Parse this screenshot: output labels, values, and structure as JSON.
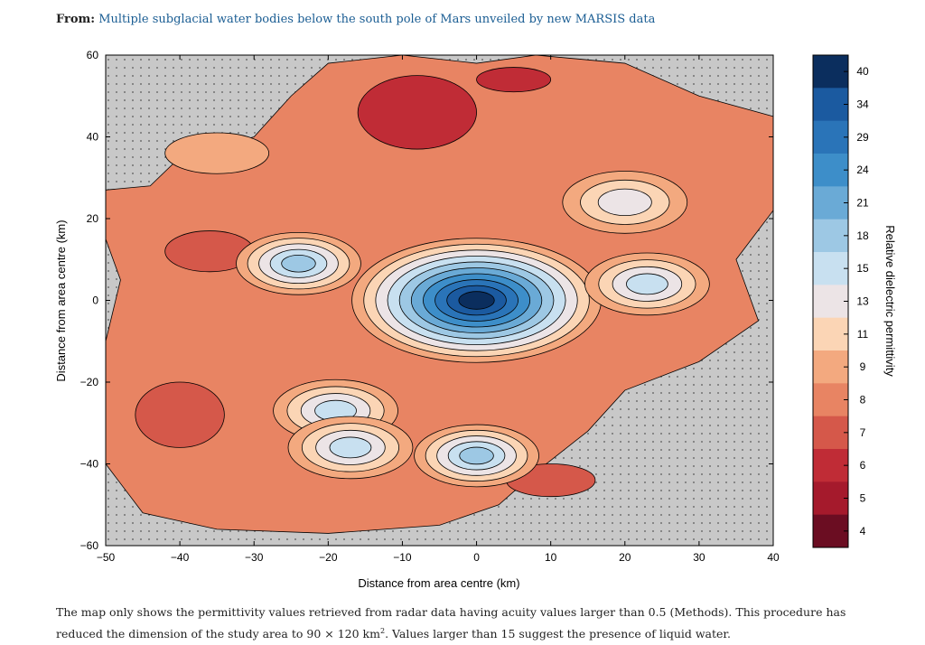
{
  "header": {
    "from_label": "From:",
    "article_link": "Multiple subglacial water bodies below the south pole of Mars unveiled by new MARSIS data"
  },
  "chart_data": {
    "type": "heatmap",
    "xlabel": "Distance from area centre (km)",
    "ylabel": "Distance from area centre (km)",
    "xlim": [
      -50,
      40
    ],
    "ylim": [
      -60,
      60
    ],
    "xticks": [
      -50,
      -40,
      -30,
      -20,
      -10,
      0,
      10,
      20,
      30,
      40
    ],
    "yticks": [
      60,
      40,
      20,
      0,
      -20,
      -40,
      -60
    ],
    "nodata_color": "#c8c8c8",
    "colorbar": {
      "label": "Relative dielectric permittivity",
      "ticks": [
        "40",
        "34",
        "29",
        "24",
        "21",
        "18",
        "15",
        "13",
        "11",
        "9",
        "8",
        "7",
        "6",
        "5",
        "4"
      ],
      "colors": [
        "#0b2e5e",
        "#1b5aa0",
        "#2a74b8",
        "#3d8ec9",
        "#6aaad6",
        "#9dc8e4",
        "#c8e0f0",
        "#ece4e6",
        "#fbd5b5",
        "#f3a97f",
        "#e88463",
        "#d5584a",
        "#c02c36",
        "#a51a2c",
        "#6b0d22"
      ]
    },
    "features": [
      {
        "x": 0,
        "y": 0,
        "peak": 40
      },
      {
        "x": -24,
        "y": 9,
        "peak": 18
      },
      {
        "x": 23,
        "y": 4,
        "peak": 15
      },
      {
        "x": -19,
        "y": -27,
        "peak": 17
      },
      {
        "x": 0,
        "y": -38,
        "peak": 18
      },
      {
        "x": -17,
        "y": -36,
        "peak": 15
      },
      {
        "x": 20,
        "y": 24,
        "peak": 13
      }
    ]
  },
  "caption": {
    "part1": "The map only shows the permittivity values retrieved from radar data having acuity values larger than 0.5 (Methods). This procedure has reduced the dimension of the study area to 90 × 120 km",
    "sup": "2",
    "part2": ". Values larger than 15 suggest the presence of liquid water."
  }
}
